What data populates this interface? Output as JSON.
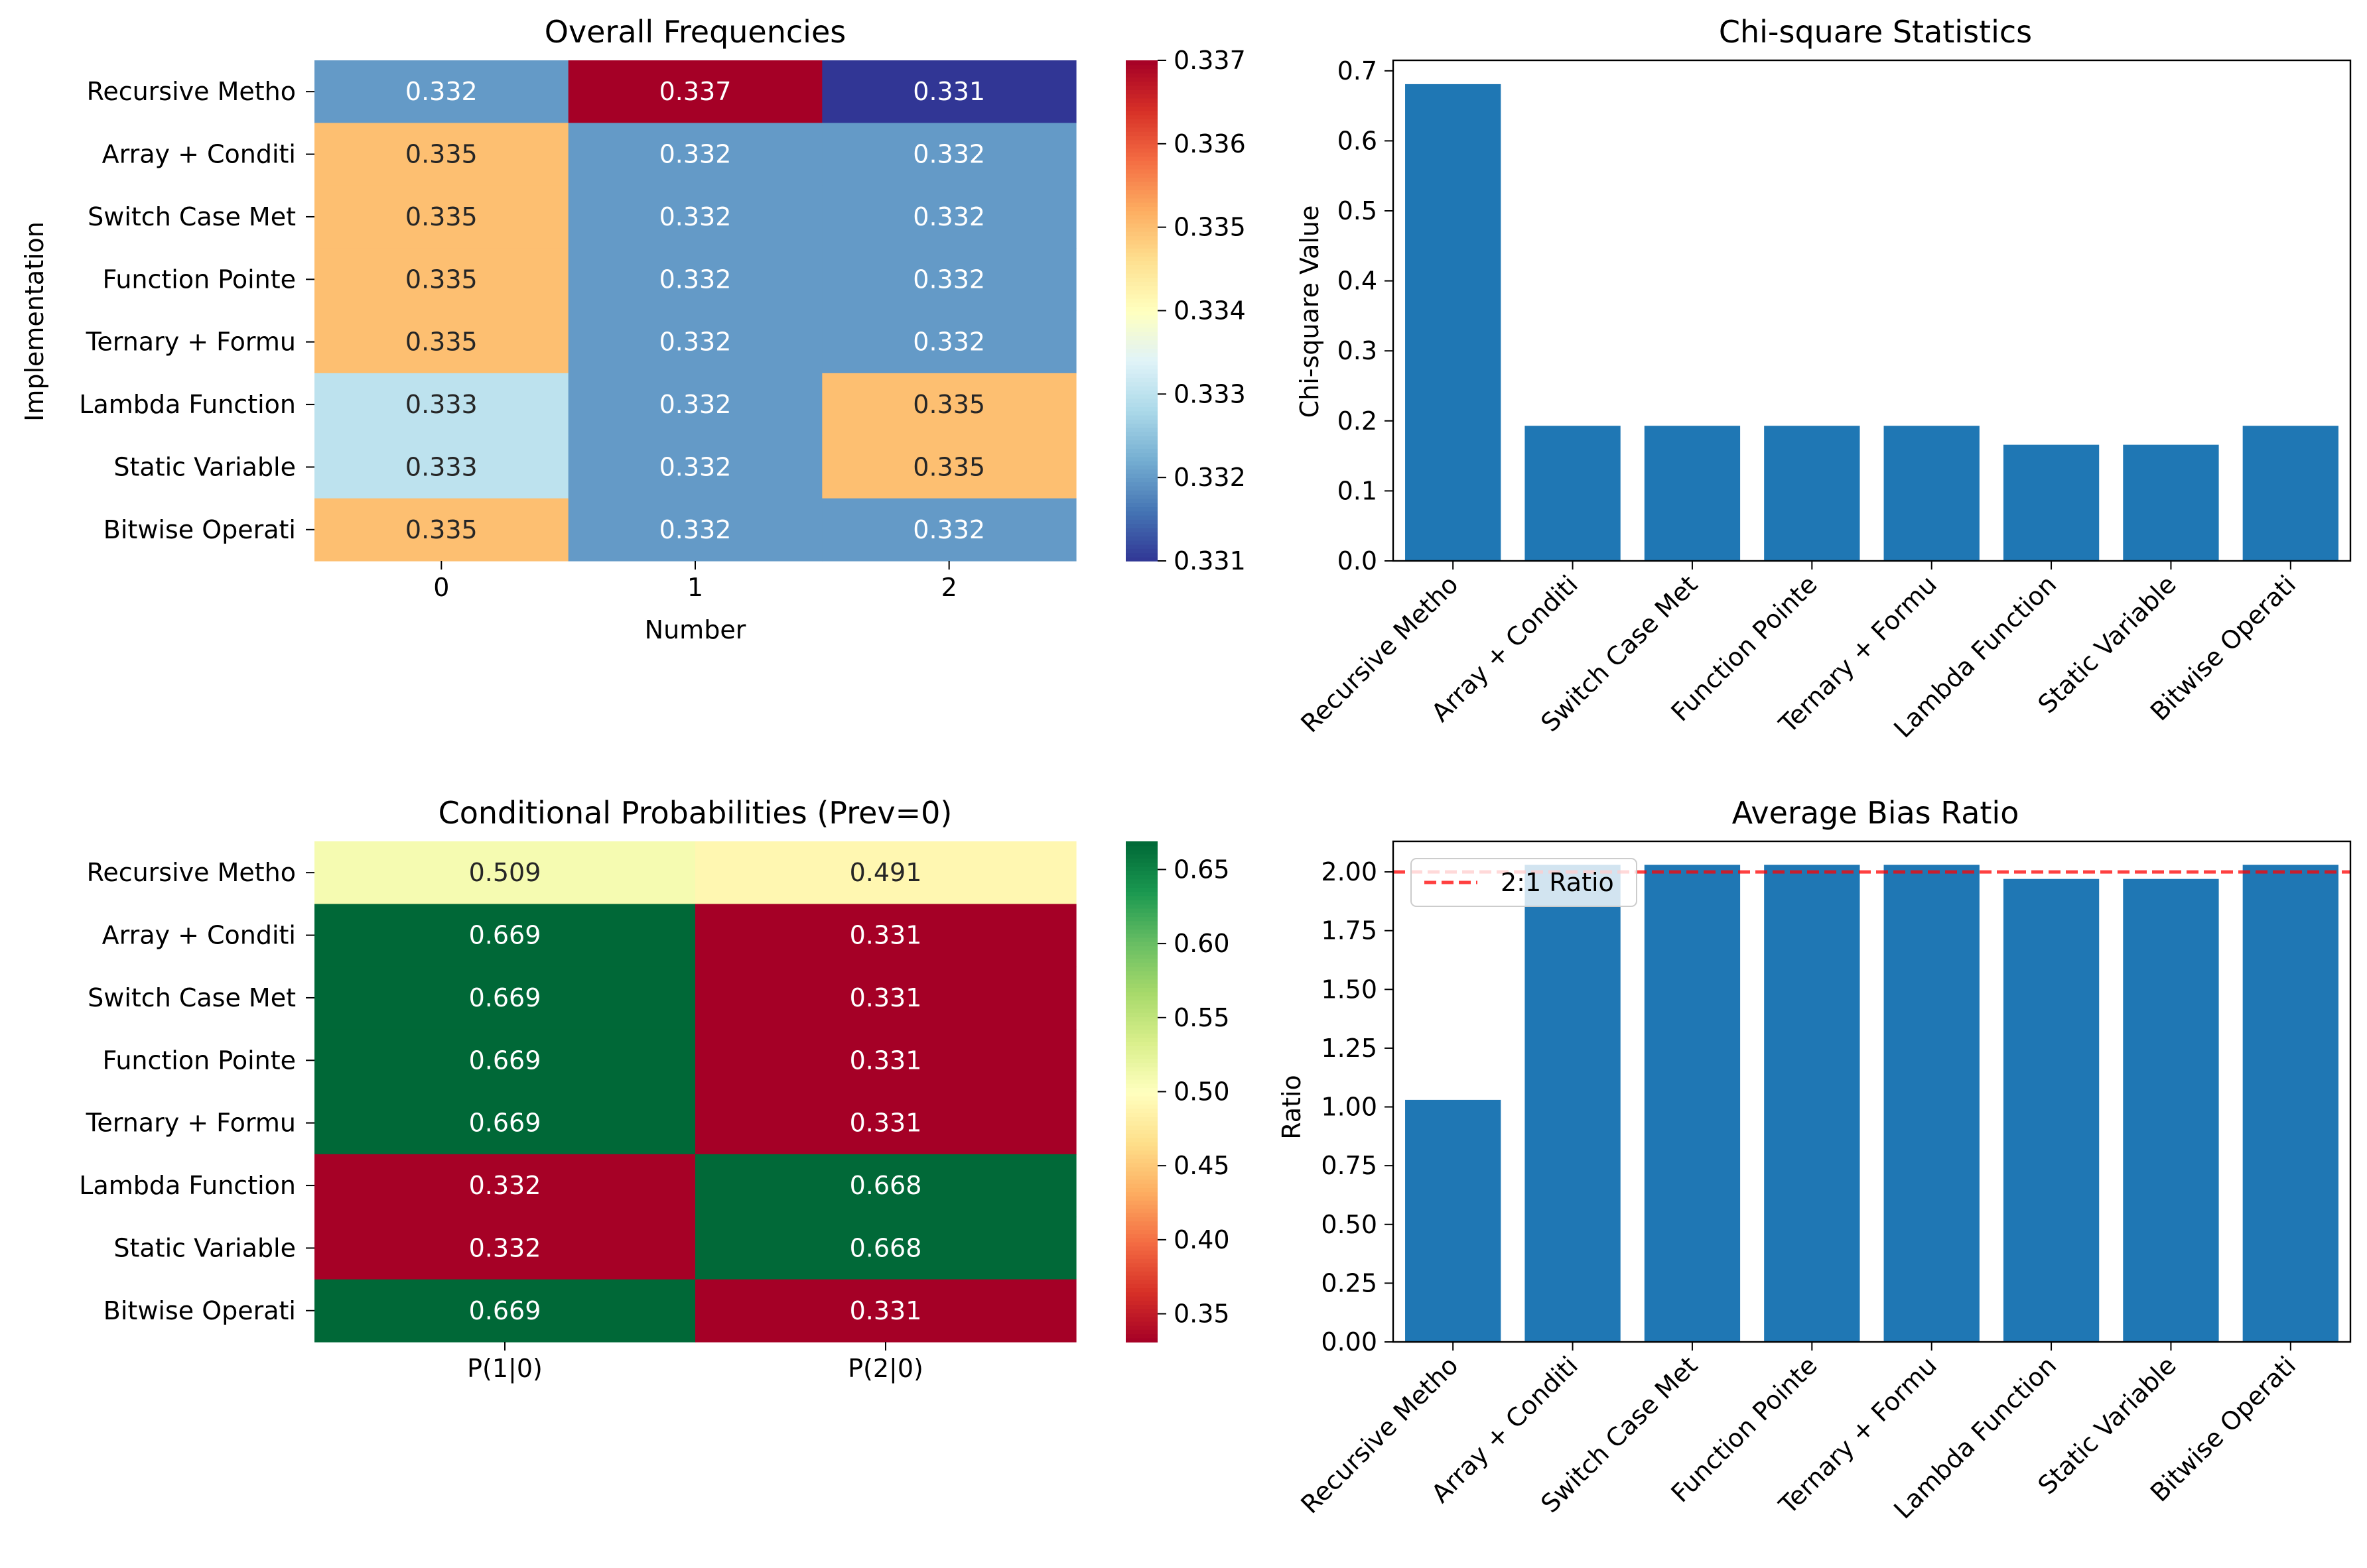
{
  "chart_data": [
    {
      "type": "heatmap",
      "title": "Overall Frequencies",
      "xlabel": "Number",
      "ylabel": "Implementation",
      "x_categories": [
        "0",
        "1",
        "2"
      ],
      "y_categories": [
        "Recursive Metho",
        "Array + Conditi",
        "Switch Case Met",
        "Function Pointe",
        "Ternary + Formu",
        "Lambda Function",
        "Static Variable",
        "Bitwise Operati"
      ],
      "values": [
        [
          0.332,
          0.337,
          0.331
        ],
        [
          0.335,
          0.332,
          0.332
        ],
        [
          0.335,
          0.332,
          0.332
        ],
        [
          0.335,
          0.332,
          0.332
        ],
        [
          0.335,
          0.332,
          0.332
        ],
        [
          0.333,
          0.332,
          0.335
        ],
        [
          0.333,
          0.332,
          0.335
        ],
        [
          0.335,
          0.332,
          0.332
        ]
      ],
      "cell_labels": [
        [
          "0.332",
          "0.337",
          "0.331"
        ],
        [
          "0.335",
          "0.332",
          "0.332"
        ],
        [
          "0.335",
          "0.332",
          "0.332"
        ],
        [
          "0.335",
          "0.332",
          "0.332"
        ],
        [
          "0.335",
          "0.332",
          "0.332"
        ],
        [
          "0.333",
          "0.332",
          "0.335"
        ],
        [
          "0.333",
          "0.332",
          "0.335"
        ],
        [
          "0.335",
          "0.332",
          "0.332"
        ]
      ],
      "colormap": "RdYlBu_r",
      "vmin": 0.331,
      "vmax": 0.337,
      "colorbar_ticks": [
        0.331,
        0.332,
        0.333,
        0.334,
        0.335,
        0.336,
        0.337
      ],
      "colorbar_tick_labels": [
        "0.331",
        "0.332",
        "0.333",
        "0.334",
        "0.335",
        "0.336",
        "0.337"
      ]
    },
    {
      "type": "bar",
      "title": "Chi-square Statistics",
      "xlabel": "",
      "ylabel": "Chi-square Value",
      "categories": [
        "Recursive Metho",
        "Array + Conditi",
        "Switch Case Met",
        "Function Pointe",
        "Ternary + Formu",
        "Lambda Function",
        "Static Variable",
        "Bitwise Operati"
      ],
      "values": [
        0.681,
        0.193,
        0.193,
        0.193,
        0.193,
        0.166,
        0.166,
        0.193
      ],
      "ylim": [
        0,
        0.715
      ],
      "yticks": [
        0,
        0.1,
        0.2,
        0.3,
        0.4,
        0.5,
        0.6,
        0.7
      ],
      "ytick_labels": [
        "0.0",
        "0.1",
        "0.2",
        "0.3",
        "0.4",
        "0.5",
        "0.6",
        "0.7"
      ],
      "bar_color": "#1f77b4"
    },
    {
      "type": "heatmap",
      "title": "Conditional Probabilities (Prev=0)",
      "xlabel": "",
      "ylabel": "",
      "x_categories": [
        "P(1|0)",
        "P(2|0)"
      ],
      "y_categories": [
        "Recursive Metho",
        "Array + Conditi",
        "Switch Case Met",
        "Function Pointe",
        "Ternary + Formu",
        "Lambda Function",
        "Static Variable",
        "Bitwise Operati"
      ],
      "values": [
        [
          0.509,
          0.491
        ],
        [
          0.669,
          0.331
        ],
        [
          0.669,
          0.331
        ],
        [
          0.669,
          0.331
        ],
        [
          0.669,
          0.331
        ],
        [
          0.332,
          0.668
        ],
        [
          0.332,
          0.668
        ],
        [
          0.669,
          0.331
        ]
      ],
      "cell_labels": [
        [
          "0.509",
          "0.491"
        ],
        [
          "0.669",
          "0.331"
        ],
        [
          "0.669",
          "0.331"
        ],
        [
          "0.669",
          "0.331"
        ],
        [
          "0.669",
          "0.331"
        ],
        [
          "0.332",
          "0.668"
        ],
        [
          "0.332",
          "0.668"
        ],
        [
          "0.669",
          "0.331"
        ]
      ],
      "colormap": "RdYlGn",
      "vmin": 0.331,
      "vmax": 0.669,
      "colorbar_ticks": [
        0.35,
        0.4,
        0.45,
        0.5,
        0.55,
        0.6,
        0.65
      ],
      "colorbar_tick_labels": [
        "0.35",
        "0.40",
        "0.45",
        "0.50",
        "0.55",
        "0.60",
        "0.65"
      ]
    },
    {
      "type": "bar",
      "title": "Average Bias Ratio",
      "xlabel": "",
      "ylabel": "Ratio",
      "categories": [
        "Recursive Metho",
        "Array + Conditi",
        "Switch Case Met",
        "Function Pointe",
        "Ternary + Formu",
        "Lambda Function",
        "Static Variable",
        "Bitwise Operati"
      ],
      "values": [
        1.03,
        2.03,
        2.03,
        2.03,
        2.03,
        1.97,
        1.97,
        2.03
      ],
      "ylim": [
        0,
        2.13
      ],
      "yticks": [
        0,
        0.25,
        0.5,
        0.75,
        1.0,
        1.25,
        1.5,
        1.75,
        2.0
      ],
      "ytick_labels": [
        "0.00",
        "0.25",
        "0.50",
        "0.75",
        "1.00",
        "1.25",
        "1.50",
        "1.75",
        "2.00"
      ],
      "bar_color": "#1f77b4",
      "reference_line": {
        "y": 2.0,
        "label": "2:1 Ratio",
        "color": "#ff0000",
        "style": "dashed"
      },
      "legend": {
        "placement": "upper-left",
        "entries": [
          "2:1 Ratio"
        ]
      }
    }
  ]
}
